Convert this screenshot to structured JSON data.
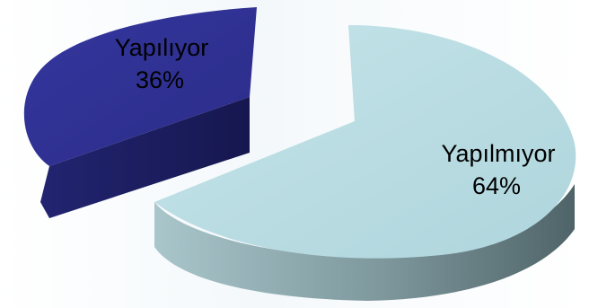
{
  "chart_data": {
    "type": "pie",
    "style": "3d-exploded",
    "legend": "none",
    "slices": [
      {
        "name": "Yapılıyor",
        "value": 36,
        "percent_label": "36%",
        "color": "#2f3093",
        "side_color": "#1c1d63"
      },
      {
        "name": "Yapılmıyor",
        "value": 64,
        "percent_label": "64%",
        "color": "#b9dde3",
        "side_color": "#7e9aa0"
      }
    ]
  }
}
